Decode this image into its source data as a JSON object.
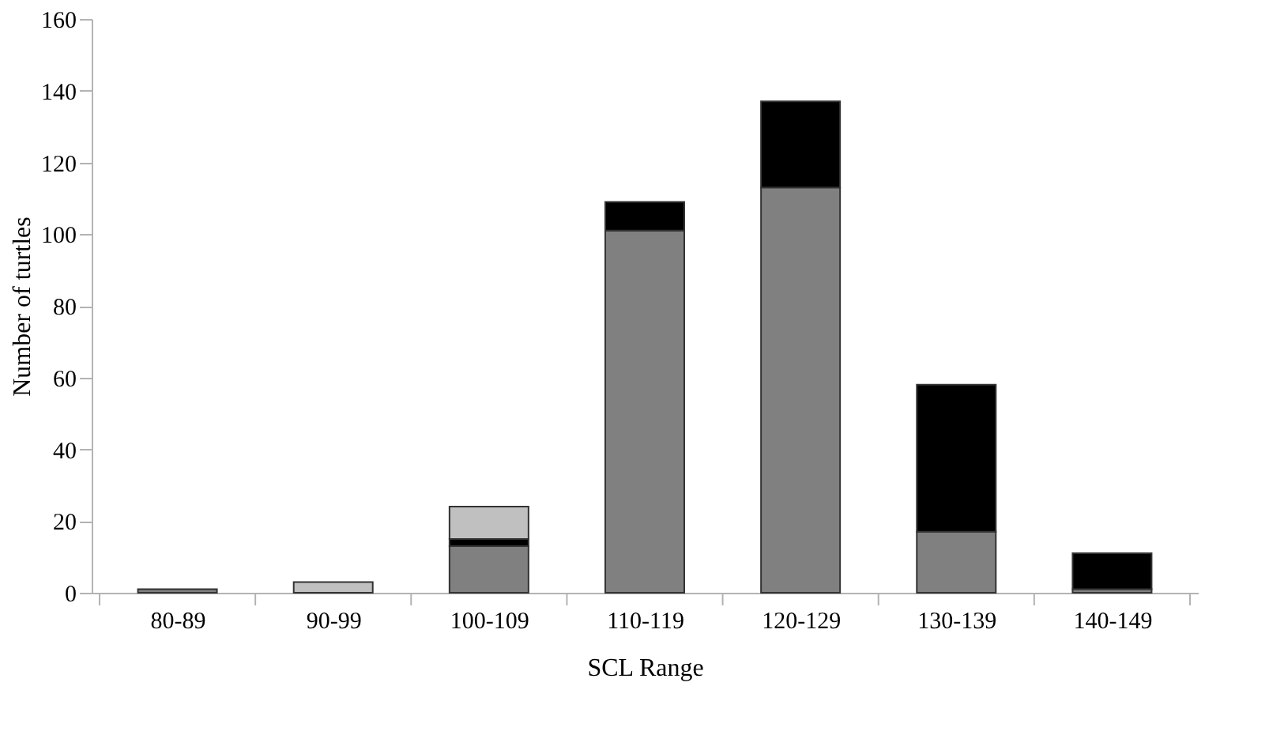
{
  "chart_data": {
    "type": "bar",
    "stacked": true,
    "xlabel": "SCL Range",
    "ylabel": "Number of turtles",
    "categories": [
      "80-89",
      "90-99",
      "100-109",
      "110-119",
      "120-129",
      "130-139",
      "140-149"
    ],
    "series": [
      {
        "color": "#808080",
        "values": [
          1,
          0,
          13,
          101,
          113,
          17,
          1
        ]
      },
      {
        "color": "#000000",
        "values": [
          0,
          0,
          2,
          8,
          24,
          41,
          10
        ]
      },
      {
        "color": "#c0c0c0",
        "values": [
          0,
          3,
          9,
          0,
          0,
          0,
          0
        ]
      }
    ],
    "ylim": [
      0,
      160
    ],
    "yticks": [
      0,
      20,
      40,
      60,
      80,
      100,
      120,
      140,
      160
    ],
    "grid": false,
    "legend": false
  }
}
